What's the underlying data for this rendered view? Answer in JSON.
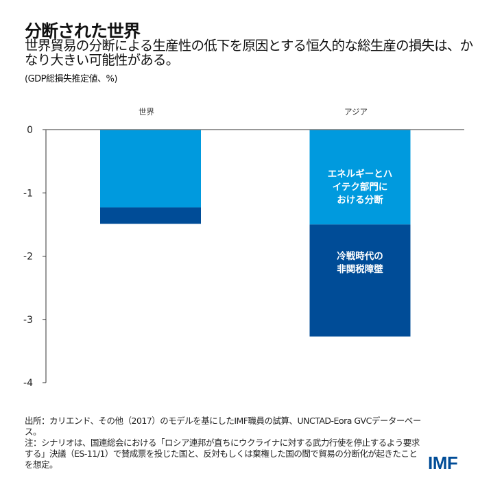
{
  "header": {
    "title": "分断された世界",
    "subtitle": "世界貿易の分断による生産性の低下を原因とする恒久的な総生産の損失は、かなり大きい可能性がある。",
    "unit": "(GDP総損失推定値、%)"
  },
  "chart_data": {
    "type": "bar",
    "stacked": true,
    "categories": [
      "世界",
      "アジア"
    ],
    "series": [
      {
        "name": "エネルギーとハイテク部門における分断",
        "values": [
          -1.23,
          -1.5
        ],
        "color": "#009ade"
      },
      {
        "name": "冷戦時代の非関税障壁",
        "values": [
          -0.26,
          -1.77
        ],
        "color": "#004c97"
      }
    ],
    "ylim": [
      -4,
      0
    ],
    "yticks": [
      "0",
      "-1",
      "-2",
      "-3",
      "-4"
    ],
    "ytick_values": [
      0,
      -1,
      -2,
      -3,
      -4
    ],
    "legend": "inside-bars",
    "grid": false
  },
  "footer": {
    "source": "出所：カリエンド、その他（2017）のモデルを基にしたIMF職員の試算、UNCTAD-Eora GVCデーターベース。",
    "note": "注：シナリオは、国連総会における「ロシア連邦が直ちにウクライナに対する武力行使を停止するよう要求する」決議（ES-11/1）で賛成票を投じた国と、反対もしくは棄権した国の間で貿易の分断化が起きたことを想定。",
    "logo": "IMF"
  }
}
